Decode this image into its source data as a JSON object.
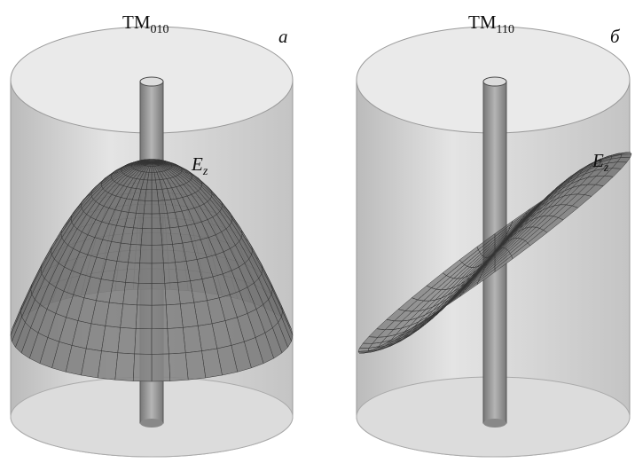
{
  "panels": [
    {
      "mode": "TM",
      "mode_index": "010",
      "letter": "а",
      "field": "E",
      "field_index": "z"
    },
    {
      "mode": "TM",
      "mode_index": "110",
      "letter": "б",
      "field": "E",
      "field_index": "z"
    }
  ]
}
